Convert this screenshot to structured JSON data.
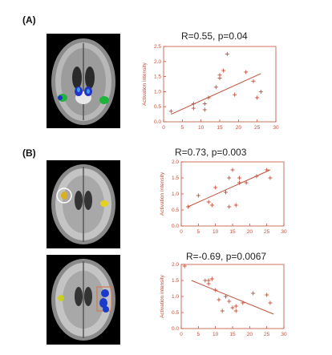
{
  "panels": [
    {
      "label": "(A)",
      "brain": {
        "highlights": [
          "green-blue bilateral activation",
          "left and right"
        ],
        "colors": [
          "#1cb43a",
          "#2233cc",
          "#3aa0e0"
        ]
      },
      "stat": "R=0.55, p=0.04"
    },
    {
      "label": "(B)",
      "brain": {
        "highlights": [
          "yellow activation",
          "circled region"
        ],
        "colors": [
          "#e6d020",
          "#d8b020"
        ]
      },
      "stat": "R=0.73, p=0.003"
    },
    {
      "label": "",
      "brain": {
        "highlights": [
          "blue activation",
          "boxed region"
        ],
        "colors": [
          "#1a3acc",
          "#d07a50"
        ]
      },
      "stat": "R=-0.69, p=0.0067"
    }
  ],
  "chart_data": [
    {
      "type": "scatter",
      "title": "R=0.55, p=0.04",
      "xlabel": "",
      "ylabel": "Activation intensity",
      "xlim": [
        0,
        30
      ],
      "ylim": [
        0.0,
        2.5
      ],
      "xticks": [
        "0",
        "5",
        "10",
        "15",
        "20",
        "25",
        "30"
      ],
      "yticks": [
        "0.0",
        "0.5",
        "1.0",
        "1.5",
        "2.0",
        "2.5"
      ],
      "points": [
        [
          2,
          0.35
        ],
        [
          8,
          0.6
        ],
        [
          8,
          0.45
        ],
        [
          11,
          0.6
        ],
        [
          11,
          0.4
        ],
        [
          12,
          0.8
        ],
        [
          14,
          1.15
        ],
        [
          15,
          1.55
        ],
        [
          15,
          1.45
        ],
        [
          16,
          1.7
        ],
        [
          17,
          2.25
        ],
        [
          19,
          0.9
        ],
        [
          22,
          1.65
        ],
        [
          25,
          0.8
        ],
        [
          26,
          1.0
        ],
        [
          24,
          1.35
        ]
      ],
      "fit": [
        [
          2,
          0.25
        ],
        [
          26,
          1.6
        ]
      ],
      "color": "#c0503a"
    },
    {
      "type": "scatter",
      "title": "R=0.73, p=0.003",
      "xlabel": "",
      "ylabel": "Activation Intensity",
      "xlim": [
        0,
        30
      ],
      "ylim": [
        0.0,
        2.0
      ],
      "xticks": [
        "0",
        "5",
        "10",
        "15",
        "20",
        "25",
        "30"
      ],
      "yticks": [
        "0.0",
        "0.5",
        "1.0",
        "1.5",
        "2.0"
      ],
      "points": [
        [
          2,
          0.6
        ],
        [
          5,
          0.95
        ],
        [
          8,
          0.75
        ],
        [
          9,
          0.65
        ],
        [
          10,
          1.2
        ],
        [
          13,
          1.05
        ],
        [
          14,
          0.6
        ],
        [
          14,
          1.5
        ],
        [
          15,
          1.75
        ],
        [
          16,
          0.65
        ],
        [
          17,
          1.35
        ],
        [
          17,
          1.5
        ],
        [
          19,
          1.35
        ],
        [
          22,
          1.55
        ],
        [
          25,
          1.75
        ],
        [
          26,
          1.5
        ]
      ],
      "fit": [
        [
          2,
          0.6
        ],
        [
          26,
          1.75
        ]
      ],
      "color": "#c0503a"
    },
    {
      "type": "scatter",
      "title": "R=-0.69, p=0.0067",
      "xlabel": "",
      "ylabel": "Activation intensity",
      "xlim": [
        0,
        30
      ],
      "ylim": [
        0.0,
        2.0
      ],
      "xticks": [
        "0",
        "5",
        "10",
        "15",
        "20",
        "25",
        "30"
      ],
      "yticks": [
        "0.0",
        "0.5",
        "1.0",
        "1.5",
        "2.0"
      ],
      "points": [
        [
          1,
          1.95
        ],
        [
          7,
          1.5
        ],
        [
          8,
          1.4
        ],
        [
          8,
          1.5
        ],
        [
          9,
          1.55
        ],
        [
          10,
          1.2
        ],
        [
          11,
          0.9
        ],
        [
          12,
          0.55
        ],
        [
          13,
          1.0
        ],
        [
          14,
          0.85
        ],
        [
          15,
          0.65
        ],
        [
          16,
          0.55
        ],
        [
          16,
          0.7
        ],
        [
          18,
          0.8
        ],
        [
          21,
          1.1
        ],
        [
          25,
          1.05
        ],
        [
          26,
          0.8
        ]
      ],
      "fit": [
        [
          3,
          1.5
        ],
        [
          27,
          0.45
        ]
      ],
      "color": "#c0503a"
    }
  ]
}
